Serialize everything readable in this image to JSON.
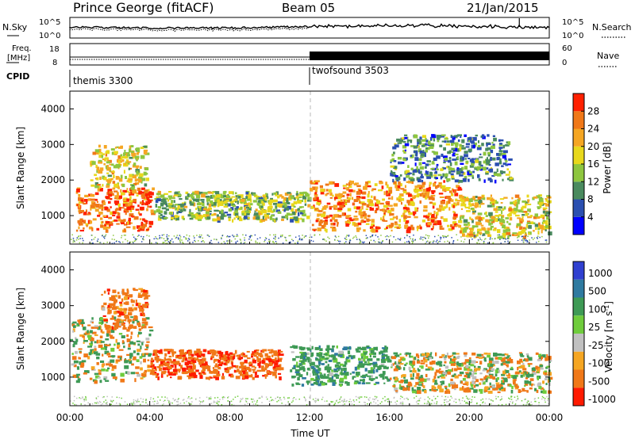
{
  "header": {
    "station": "Prince George (fitACF)",
    "beam": "Beam 05",
    "date": "21/Jan/2015"
  },
  "side_labels": {
    "nsky": "N.Sky",
    "nsearch": "N.Search",
    "freq_l1": "Freq.",
    "freq_l2": "[MHz]",
    "cpid": "CPID",
    "nave": "Nave"
  },
  "noise_panel": {
    "left_ticks": [
      "10^5",
      "10^0"
    ],
    "right_ticks": [
      "10^5",
      "10^0"
    ]
  },
  "freq_panel": {
    "left_ticks": [
      "18",
      "8"
    ],
    "right_ticks": [
      "60",
      "0"
    ]
  },
  "cpid": [
    {
      "label": "themis 3300",
      "start": "00:00"
    },
    {
      "label": "twofsound 3503",
      "start": "12:00"
    }
  ],
  "colors": {
    "power_scale": [
      "#0000ff",
      "#2b4fb0",
      "#4a8a5e",
      "#8ec63f",
      "#e8d81c",
      "#f5a623",
      "#f07818",
      "#ff2000"
    ],
    "velocity_scale": [
      "#3040d0",
      "#2f7aa0",
      "#3e9a55",
      "#6fcc3c",
      "#c0c0c0",
      "#f5a623",
      "#f07818",
      "#ff1a00"
    ]
  },
  "chart_data": [
    {
      "type": "heatmap",
      "title": "",
      "xlabel": "",
      "ylabel": "Slant Range [km]",
      "xlim": [
        "00:00",
        "24:00"
      ],
      "ylim": [
        200,
        4500
      ],
      "x_ticks": [
        "00:00",
        "04:00",
        "08:00",
        "12:00",
        "16:00",
        "20:00",
        "00:00"
      ],
      "y_ticks": [
        1000,
        2000,
        3000,
        4000
      ],
      "colorbar_label": "Power [dB]",
      "colorbar_ticks": [
        4,
        8,
        12,
        16,
        20,
        24,
        28
      ],
      "features": [
        {
          "t_start": 0.3,
          "t_end": 4.1,
          "range_low": 600,
          "range_high": 1800,
          "typical_value": 26
        },
        {
          "t_start": 1.0,
          "t_end": 3.8,
          "range_low": 1800,
          "range_high": 3000,
          "typical_value": 18
        },
        {
          "t_start": 4.2,
          "t_end": 11.9,
          "range_low": 900,
          "range_high": 1700,
          "typical_value": 14
        },
        {
          "t_start": 12.0,
          "t_end": 19.5,
          "range_low": 600,
          "range_high": 2000,
          "typical_value": 24
        },
        {
          "t_start": 19.5,
          "t_end": 24.0,
          "range_low": 400,
          "range_high": 1600,
          "typical_value": 18
        },
        {
          "t_start": 16.0,
          "t_end": 22.0,
          "range_low": 2000,
          "range_high": 3300,
          "typical_value": 10
        }
      ]
    },
    {
      "type": "heatmap",
      "title": "",
      "xlabel": "Time UT",
      "ylabel": "Slant Range [km]",
      "xlim": [
        "00:00",
        "24:00"
      ],
      "ylim": [
        200,
        4500
      ],
      "x_ticks": [
        "00:00",
        "04:00",
        "08:00",
        "12:00",
        "16:00",
        "20:00",
        "00:00"
      ],
      "y_ticks": [
        1000,
        2000,
        3000,
        4000
      ],
      "colorbar_label": "Velocity [m s^-1]",
      "colorbar_ticks": [
        1000,
        500,
        100,
        25,
        -25,
        -100,
        -500,
        -1000
      ],
      "features": [
        {
          "t_start": 0.0,
          "t_end": 4.0,
          "range_low": 900,
          "range_high": 2700,
          "typical_value": 0
        },
        {
          "t_start": 1.5,
          "t_end": 3.8,
          "range_low": 2400,
          "range_high": 3500,
          "typical_value": -300
        },
        {
          "t_start": 4.0,
          "t_end": 10.5,
          "range_low": 1000,
          "range_high": 1800,
          "typical_value": -400
        },
        {
          "t_start": 11.0,
          "t_end": 16.0,
          "range_low": 800,
          "range_high": 1900,
          "typical_value": 300
        },
        {
          "t_start": 16.0,
          "t_end": 24.0,
          "range_low": 600,
          "range_high": 1700,
          "typical_value": 0
        }
      ]
    }
  ]
}
